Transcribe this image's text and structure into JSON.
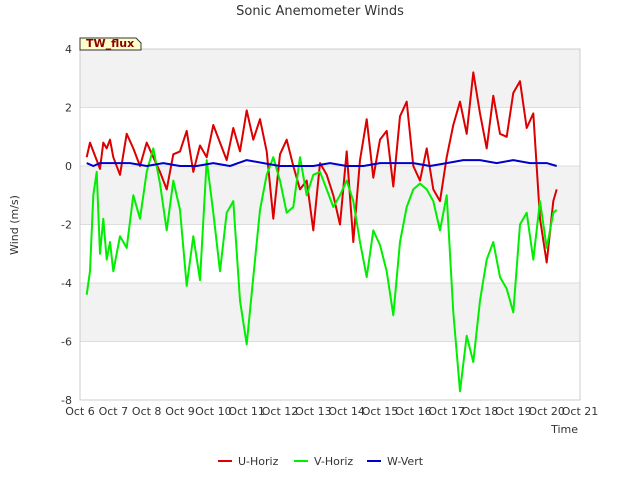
{
  "chart_data": {
    "type": "line",
    "title": "Sonic Anemometer Winds",
    "xlabel": "Time",
    "ylabel": "Wind (m/s)",
    "site_label": "TW_flux",
    "xlim": [
      0,
      15
    ],
    "ylim": [
      -8,
      4
    ],
    "x_ticks": [
      0,
      1,
      2,
      3,
      4,
      5,
      6,
      7,
      8,
      9,
      10,
      11,
      12,
      13,
      14,
      15
    ],
    "x_tick_labels": [
      "Oct 6",
      "Oct 7",
      "Oct 8",
      "Oct 9",
      "Oct 10",
      "Oct 11",
      "Oct 12",
      "Oct 13",
      "Oct 14",
      "Oct 15",
      "Oct 16",
      "Oct 17",
      "Oct 18",
      "Oct 19",
      "Oct 20",
      "Oct 21"
    ],
    "y_ticks": [
      -8,
      -6,
      -4,
      -2,
      0,
      2,
      4
    ],
    "y_tick_labels": [
      "-8",
      "-6",
      "-4",
      "-2",
      "0",
      "2",
      "4"
    ],
    "legend_position": "bottom-center",
    "series": [
      {
        "name": "U-Horiz",
        "color": "#dd0000",
        "x": [
          0.2,
          0.3,
          0.4,
          0.5,
          0.6,
          0.7,
          0.8,
          0.9,
          1.0,
          1.2,
          1.4,
          1.6,
          1.8,
          2.0,
          2.2,
          2.4,
          2.6,
          2.8,
          3.0,
          3.2,
          3.4,
          3.6,
          3.8,
          4.0,
          4.2,
          4.4,
          4.6,
          4.8,
          5.0,
          5.2,
          5.4,
          5.6,
          5.8,
          6.0,
          6.2,
          6.4,
          6.6,
          6.8,
          7.0,
          7.2,
          7.4,
          7.6,
          7.8,
          8.0,
          8.2,
          8.4,
          8.6,
          8.8,
          9.0,
          9.2,
          9.4,
          9.6,
          9.8,
          10.0,
          10.2,
          10.4,
          10.6,
          10.8,
          11.0,
          11.2,
          11.4,
          11.6,
          11.8,
          12.0,
          12.2,
          12.4,
          12.6,
          12.8,
          13.0,
          13.2,
          13.4,
          13.6,
          13.8,
          14.0,
          14.2,
          14.3
        ],
        "values": [
          0.3,
          0.8,
          0.5,
          0.2,
          -0.1,
          0.8,
          0.6,
          0.9,
          0.3,
          -0.3,
          1.1,
          0.6,
          0.0,
          0.8,
          0.3,
          -0.2,
          -0.8,
          0.4,
          0.5,
          1.2,
          -0.2,
          0.7,
          0.3,
          1.4,
          0.8,
          0.2,
          1.3,
          0.5,
          1.9,
          0.9,
          1.6,
          0.5,
          -1.8,
          0.4,
          0.9,
          0.0,
          -0.8,
          -0.5,
          -2.2,
          0.1,
          -0.3,
          -1.0,
          -2.0,
          0.5,
          -2.6,
          0.2,
          1.6,
          -0.4,
          0.9,
          1.2,
          -0.7,
          1.7,
          2.2,
          0.0,
          -0.5,
          0.6,
          -0.8,
          -1.2,
          0.3,
          1.4,
          2.2,
          1.1,
          3.2,
          1.8,
          0.6,
          2.4,
          1.1,
          1.0,
          2.5,
          2.9,
          1.3,
          1.8,
          -1.8,
          -3.3,
          -1.2,
          -0.8
        ]
      },
      {
        "name": "V-Horiz",
        "color": "#00ee00",
        "x": [
          0.2,
          0.3,
          0.4,
          0.5,
          0.6,
          0.7,
          0.8,
          0.9,
          1.0,
          1.2,
          1.4,
          1.6,
          1.8,
          2.0,
          2.2,
          2.4,
          2.6,
          2.8,
          3.0,
          3.2,
          3.4,
          3.6,
          3.8,
          4.0,
          4.2,
          4.4,
          4.6,
          4.8,
          5.0,
          5.2,
          5.4,
          5.6,
          5.8,
          6.0,
          6.2,
          6.4,
          6.6,
          6.8,
          7.0,
          7.2,
          7.4,
          7.6,
          7.8,
          8.0,
          8.2,
          8.4,
          8.6,
          8.8,
          9.0,
          9.2,
          9.4,
          9.6,
          9.8,
          10.0,
          10.2,
          10.4,
          10.6,
          10.8,
          11.0,
          11.2,
          11.4,
          11.6,
          11.8,
          12.0,
          12.2,
          12.4,
          12.6,
          12.8,
          13.0,
          13.2,
          13.4,
          13.6,
          13.8,
          14.0,
          14.2,
          14.3
        ],
        "values": [
          -4.4,
          -3.6,
          -1.0,
          -0.2,
          -3.0,
          -1.8,
          -3.2,
          -2.6,
          -3.6,
          -2.4,
          -2.8,
          -1.0,
          -1.8,
          -0.2,
          0.6,
          -0.6,
          -2.2,
          -0.5,
          -1.5,
          -4.1,
          -2.4,
          -3.9,
          0.2,
          -1.6,
          -3.6,
          -1.6,
          -1.2,
          -4.6,
          -6.1,
          -3.8,
          -1.5,
          -0.3,
          0.3,
          -0.5,
          -1.6,
          -1.4,
          0.3,
          -1.0,
          -0.3,
          -0.2,
          -0.8,
          -1.4,
          -1.0,
          -0.5,
          -1.2,
          -2.6,
          -3.8,
          -2.2,
          -2.7,
          -3.6,
          -5.1,
          -2.6,
          -1.4,
          -0.8,
          -0.6,
          -0.8,
          -1.2,
          -2.2,
          -1.0,
          -5.0,
          -7.7,
          -5.8,
          -6.7,
          -4.6,
          -3.2,
          -2.6,
          -3.8,
          -4.2,
          -5.0,
          -2.0,
          -1.6,
          -3.2,
          -1.2,
          -2.8,
          -1.6,
          -1.5
        ]
      },
      {
        "name": "W-Vert",
        "color": "#0000cc",
        "x": [
          0.2,
          0.4,
          0.6,
          0.8,
          1.0,
          1.5,
          2.0,
          2.5,
          3.0,
          3.5,
          4.0,
          4.5,
          5.0,
          5.5,
          6.0,
          6.5,
          7.0,
          7.5,
          8.0,
          8.5,
          9.0,
          9.5,
          10.0,
          10.5,
          11.0,
          11.5,
          12.0,
          12.5,
          13.0,
          13.5,
          14.0,
          14.3
        ],
        "values": [
          0.1,
          0.0,
          0.1,
          0.1,
          0.1,
          0.1,
          0.0,
          0.1,
          0.0,
          0.0,
          0.1,
          0.0,
          0.2,
          0.1,
          0.0,
          0.0,
          0.0,
          0.1,
          0.0,
          0.0,
          0.1,
          0.1,
          0.1,
          0.0,
          0.1,
          0.2,
          0.2,
          0.1,
          0.2,
          0.1,
          0.1,
          0.0
        ]
      }
    ]
  }
}
